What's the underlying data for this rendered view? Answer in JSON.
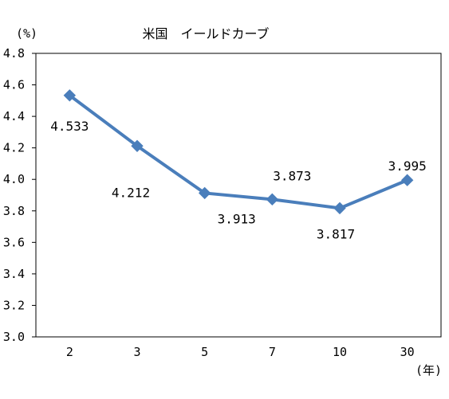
{
  "chart_data": {
    "type": "line",
    "title": "米国　イールドカーブ",
    "ylabel": "(%)",
    "xlabel": "(年)",
    "categories": [
      "2",
      "3",
      "5",
      "7",
      "10",
      "30"
    ],
    "series": [
      {
        "values": [
          4.533,
          4.212,
          3.913,
          3.873,
          3.817,
          3.995
        ],
        "data_labels": [
          "4.533",
          "4.212",
          "3.913",
          "3.873",
          "3.817",
          "3.995"
        ],
        "color": "#4a7ebb"
      }
    ],
    "ylim": [
      3.0,
      4.8
    ],
    "yticks": [
      "3.0",
      "3.2",
      "3.4",
      "3.6",
      "3.8",
      "4.0",
      "4.2",
      "4.4",
      "4.6",
      "4.8"
    ],
    "grid": false,
    "legend": "none"
  }
}
